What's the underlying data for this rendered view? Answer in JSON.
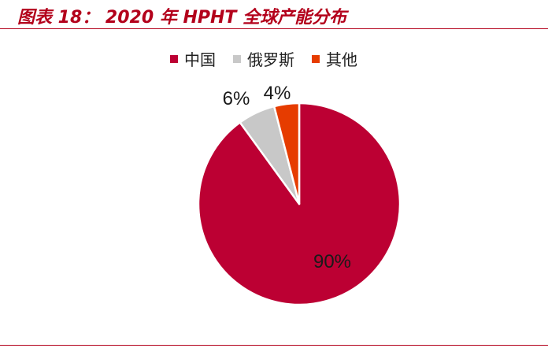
{
  "figure_title": "图表 18：  2020 年 HPHT 全球产能分布",
  "colors": {
    "title": "#b3001b",
    "rule": "#b3001b"
  },
  "chart_data": {
    "type": "pie",
    "title": "",
    "series": [
      {
        "name": "中国",
        "value": 90,
        "label": "90%",
        "color": "#bc0033"
      },
      {
        "name": "俄罗斯",
        "value": 6,
        "label": "6%",
        "color": "#c8c8c8"
      },
      {
        "name": "其他",
        "value": 4,
        "label": "4%",
        "color": "#e63c00"
      }
    ],
    "legend_position": "top"
  }
}
